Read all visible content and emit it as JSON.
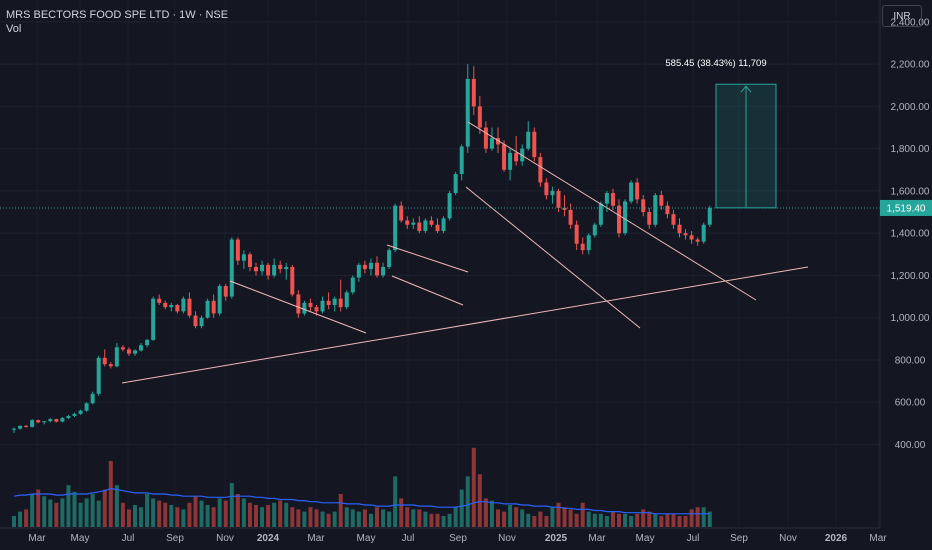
{
  "header": {
    "title": "MRS BECTORS FOOD SPE LTD · 1W · NSE",
    "volume_label": "Vol"
  },
  "currency_button": "INR",
  "colors": {
    "background": "#141722",
    "up": "#26a69a",
    "down": "#ef5350",
    "vol_ma": "#2962ff",
    "trendline": "#f0b8b8",
    "measure": "#26a69a",
    "price_badge": "#26a69a"
  },
  "chart_data": {
    "type": "candlestick",
    "y_ticks": [
      "2,400.00",
      "2,200.00",
      "2,000.00",
      "1,800.00",
      "1,600.00",
      "1,400.00",
      "1,200.00",
      "1,000.00",
      "800.00",
      "600.00",
      "400.00"
    ],
    "y_range": [
      300,
      2500
    ],
    "x_ticks": [
      "Mar",
      "May",
      "Jul",
      "Sep",
      "Nov",
      "2024",
      "Mar",
      "May",
      "Jul",
      "Sep",
      "Nov",
      "2025",
      "Mar",
      "May",
      "Jul",
      "Sep",
      "Nov",
      "2026",
      "Mar"
    ],
    "last_price": "1,519.40",
    "measure_label": "585.45 (38.43%) 11,709",
    "measure_range": [
      1520,
      2105
    ],
    "candles": [
      [
        470,
        480,
        455,
        475
      ],
      [
        475,
        490,
        470,
        488
      ],
      [
        488,
        492,
        480,
        483
      ],
      [
        483,
        520,
        480,
        515
      ],
      [
        515,
        518,
        500,
        505
      ],
      [
        505,
        512,
        495,
        510
      ],
      [
        510,
        525,
        505,
        520
      ],
      [
        520,
        522,
        505,
        508
      ],
      [
        508,
        530,
        505,
        525
      ],
      [
        525,
        540,
        520,
        535
      ],
      [
        535,
        550,
        530,
        545
      ],
      [
        545,
        565,
        540,
        560
      ],
      [
        560,
        600,
        555,
        595
      ],
      [
        595,
        650,
        590,
        640
      ],
      [
        640,
        820,
        630,
        810
      ],
      [
        810,
        850,
        770,
        780
      ],
      [
        780,
        790,
        760,
        770
      ],
      [
        770,
        880,
        765,
        860
      ],
      [
        860,
        870,
        840,
        850
      ],
      [
        850,
        860,
        820,
        830
      ],
      [
        830,
        850,
        820,
        845
      ],
      [
        845,
        880,
        840,
        870
      ],
      [
        870,
        900,
        860,
        895
      ],
      [
        895,
        1100,
        890,
        1090
      ],
      [
        1090,
        1110,
        1060,
        1070
      ],
      [
        1070,
        1080,
        1040,
        1050
      ],
      [
        1050,
        1070,
        1030,
        1060
      ],
      [
        1060,
        1065,
        1020,
        1030
      ],
      [
        1030,
        1100,
        1020,
        1090
      ],
      [
        1090,
        1120,
        1000,
        1010
      ],
      [
        1010,
        1030,
        950,
        960
      ],
      [
        960,
        1010,
        950,
        1000
      ],
      [
        1000,
        1090,
        995,
        1080
      ],
      [
        1080,
        1110,
        1000,
        1020
      ],
      [
        1020,
        1160,
        1010,
        1150
      ],
      [
        1150,
        1160,
        1080,
        1100
      ],
      [
        1100,
        1380,
        1090,
        1370
      ],
      [
        1370,
        1380,
        1250,
        1270
      ],
      [
        1270,
        1320,
        1230,
        1300
      ],
      [
        1300,
        1310,
        1220,
        1240
      ],
      [
        1240,
        1260,
        1200,
        1220
      ],
      [
        1220,
        1270,
        1200,
        1250
      ],
      [
        1250,
        1260,
        1180,
        1200
      ],
      [
        1200,
        1280,
        1190,
        1250
      ],
      [
        1250,
        1270,
        1210,
        1230
      ],
      [
        1230,
        1260,
        1180,
        1240
      ],
      [
        1240,
        1250,
        1100,
        1110
      ],
      [
        1110,
        1130,
        1000,
        1020
      ],
      [
        1020,
        1080,
        1010,
        1070
      ],
      [
        1070,
        1090,
        1030,
        1050
      ],
      [
        1050,
        1060,
        1010,
        1030
      ],
      [
        1030,
        1100,
        1020,
        1080
      ],
      [
        1080,
        1120,
        1040,
        1060
      ],
      [
        1060,
        1100,
        1030,
        1090
      ],
      [
        1090,
        1180,
        1030,
        1050
      ],
      [
        1050,
        1130,
        1040,
        1120
      ],
      [
        1120,
        1200,
        1110,
        1190
      ],
      [
        1190,
        1260,
        1170,
        1250
      ],
      [
        1250,
        1270,
        1210,
        1230
      ],
      [
        1230,
        1280,
        1200,
        1260
      ],
      [
        1260,
        1290,
        1190,
        1200
      ],
      [
        1200,
        1260,
        1190,
        1240
      ],
      [
        1240,
        1330,
        1230,
        1320
      ],
      [
        1320,
        1540,
        1310,
        1530
      ],
      [
        1530,
        1550,
        1450,
        1460
      ],
      [
        1460,
        1480,
        1420,
        1440
      ],
      [
        1440,
        1470,
        1420,
        1450
      ],
      [
        1450,
        1480,
        1400,
        1410
      ],
      [
        1410,
        1470,
        1400,
        1460
      ],
      [
        1460,
        1480,
        1430,
        1440
      ],
      [
        1440,
        1470,
        1400,
        1410
      ],
      [
        1410,
        1480,
        1400,
        1470
      ],
      [
        1470,
        1600,
        1460,
        1590
      ],
      [
        1590,
        1690,
        1580,
        1680
      ],
      [
        1680,
        1820,
        1650,
        1810
      ],
      [
        1810,
        2200,
        1780,
        2130
      ],
      [
        2130,
        2190,
        1960,
        2000
      ],
      [
        2000,
        2050,
        1870,
        1900
      ],
      [
        1900,
        1930,
        1780,
        1800
      ],
      [
        1800,
        1900,
        1790,
        1850
      ],
      [
        1850,
        1900,
        1780,
        1820
      ],
      [
        1820,
        1840,
        1690,
        1700
      ],
      [
        1700,
        1800,
        1650,
        1780
      ],
      [
        1780,
        1860,
        1720,
        1740
      ],
      [
        1740,
        1820,
        1720,
        1800
      ],
      [
        1800,
        1930,
        1790,
        1880
      ],
      [
        1880,
        1900,
        1740,
        1760
      ],
      [
        1760,
        1780,
        1620,
        1640
      ],
      [
        1640,
        1660,
        1560,
        1580
      ],
      [
        1580,
        1620,
        1540,
        1600
      ],
      [
        1600,
        1610,
        1500,
        1520
      ],
      [
        1520,
        1580,
        1480,
        1510
      ],
      [
        1510,
        1540,
        1420,
        1440
      ],
      [
        1440,
        1460,
        1320,
        1350
      ],
      [
        1350,
        1380,
        1300,
        1320
      ],
      [
        1320,
        1400,
        1300,
        1390
      ],
      [
        1390,
        1450,
        1380,
        1440
      ],
      [
        1440,
        1550,
        1430,
        1540
      ],
      [
        1540,
        1600,
        1500,
        1590
      ],
      [
        1590,
        1610,
        1510,
        1530
      ],
      [
        1530,
        1560,
        1380,
        1400
      ],
      [
        1400,
        1560,
        1390,
        1550
      ],
      [
        1550,
        1650,
        1540,
        1640
      ],
      [
        1640,
        1660,
        1540,
        1560
      ],
      [
        1560,
        1580,
        1480,
        1500
      ],
      [
        1500,
        1520,
        1420,
        1440
      ],
      [
        1440,
        1590,
        1430,
        1580
      ],
      [
        1580,
        1600,
        1510,
        1530
      ],
      [
        1530,
        1550,
        1470,
        1490
      ],
      [
        1490,
        1510,
        1420,
        1440
      ],
      [
        1440,
        1470,
        1380,
        1400
      ],
      [
        1400,
        1420,
        1370,
        1390
      ],
      [
        1390,
        1410,
        1350,
        1370
      ],
      [
        1370,
        1380,
        1340,
        1360
      ],
      [
        1360,
        1450,
        1350,
        1440
      ],
      [
        1440,
        1530,
        1430,
        1519.4
      ]
    ],
    "volumes": [
      10,
      14,
      16,
      30,
      34,
      28,
      25,
      22,
      26,
      38,
      32,
      22,
      26,
      30,
      24,
      34,
      60,
      38,
      22,
      16,
      20,
      18,
      30,
      26,
      24,
      22,
      20,
      18,
      16,
      22,
      28,
      24,
      20,
      18,
      26,
      24,
      40,
      30,
      26,
      22,
      20,
      18,
      20,
      22,
      24,
      22,
      18,
      16,
      14,
      18,
      16,
      14,
      12,
      14,
      30,
      18,
      16,
      14,
      16,
      12,
      18,
      16,
      14,
      46,
      26,
      18,
      16,
      16,
      14,
      12,
      12,
      10,
      12,
      18,
      34,
      46,
      72,
      48,
      26,
      24,
      16,
      14,
      20,
      18,
      16,
      12,
      10,
      14,
      10,
      18,
      22,
      18,
      16,
      12,
      22,
      14,
      12,
      12,
      10,
      14,
      12,
      12,
      10,
      12,
      16,
      14,
      12,
      10,
      12,
      12,
      10,
      10,
      16,
      18,
      18,
      14
    ],
    "volume_ma": [
      28,
      29,
      29,
      30,
      30,
      30,
      30,
      29,
      29,
      30,
      30,
      30,
      30,
      31,
      32,
      33,
      35,
      34,
      33,
      32,
      31,
      31,
      31,
      30,
      30,
      30,
      29,
      29,
      28,
      28,
      28,
      28,
      27,
      27,
      27,
      27,
      28,
      28,
      28,
      28,
      27,
      27,
      26,
      26,
      25,
      25,
      25,
      24,
      24,
      23,
      23,
      22,
      22,
      22,
      22,
      21,
      21,
      21,
      20,
      20,
      19,
      19,
      19,
      20,
      20,
      20,
      20,
      19,
      19,
      19,
      18,
      18,
      18,
      18,
      19,
      20,
      22,
      23,
      23,
      22,
      22,
      21,
      21,
      21,
      20,
      20,
      19,
      19,
      19,
      18,
      18,
      17,
      17,
      16,
      16,
      16,
      15,
      15,
      14,
      14,
      14,
      13,
      13,
      13,
      13,
      13,
      12,
      12,
      12,
      12,
      12,
      12,
      12,
      12,
      12,
      12
    ]
  }
}
